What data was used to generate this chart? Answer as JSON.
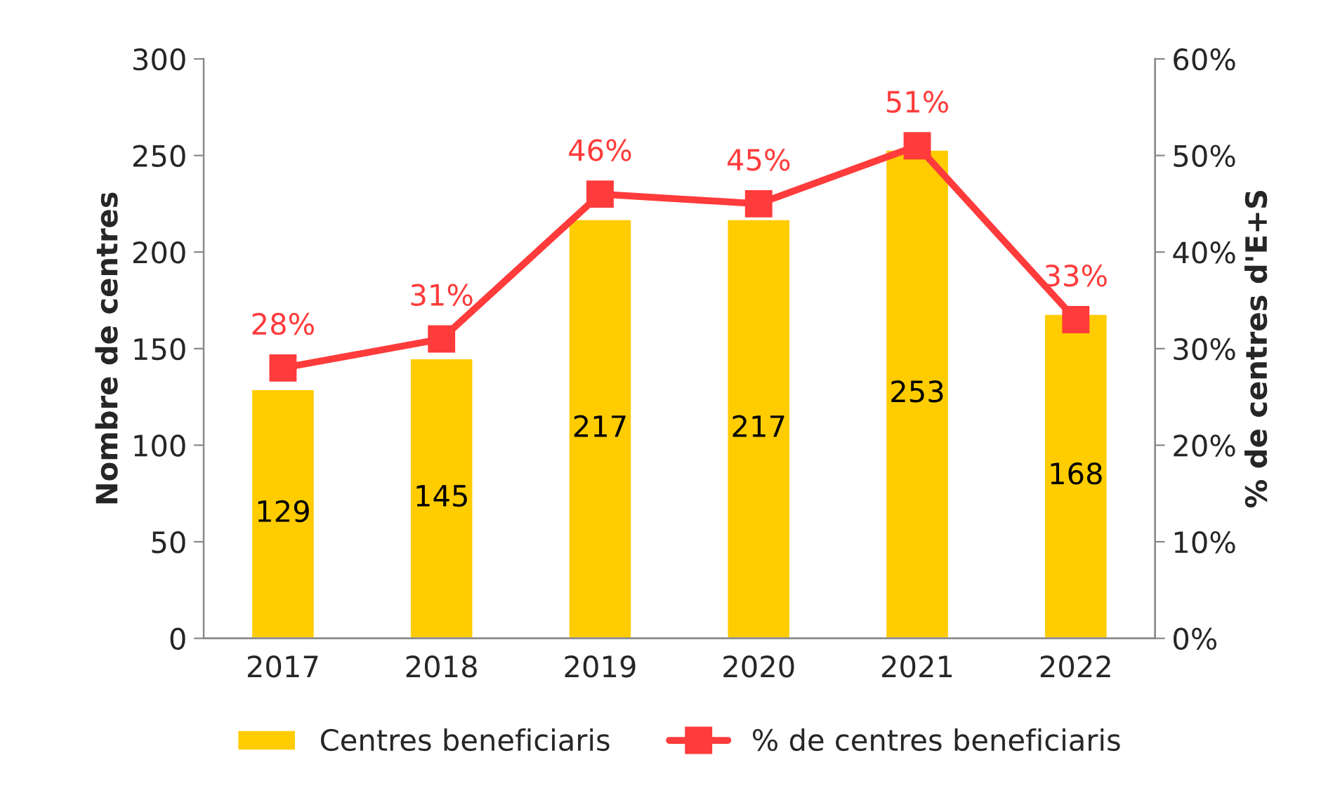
{
  "chart_data": {
    "type": "bar",
    "categories": [
      "2017",
      "2018",
      "2019",
      "2020",
      "2021",
      "2022"
    ],
    "ylabel": "Nombre de centres",
    "y2label": "% de centres d'E+S",
    "ylim": [
      0,
      300
    ],
    "yticks": [
      0,
      50,
      100,
      150,
      200,
      250,
      300
    ],
    "y2lim": [
      0,
      60
    ],
    "y2ticks": [
      {
        "value": 0,
        "label": "0%"
      },
      {
        "value": 10,
        "label": "10%"
      },
      {
        "value": 20,
        "label": "20%"
      },
      {
        "value": 30,
        "label": "30%"
      },
      {
        "value": 40,
        "label": "40%"
      },
      {
        "value": 50,
        "label": "50%"
      },
      {
        "value": 60,
        "label": "60%"
      }
    ],
    "series": [
      {
        "name": "Centres beneficiaris",
        "color": "#ffcc00",
        "values": [
          129,
          145,
          217,
          217,
          253,
          168
        ],
        "value_labels": [
          "129",
          "145",
          "217",
          "217",
          "253",
          "168"
        ]
      },
      {
        "name": "% de centres beneficiaris",
        "type": "line",
        "axis": "y2",
        "color": "#ff3b3b",
        "marker": "square",
        "values": [
          28,
          31,
          46,
          45,
          51,
          33
        ],
        "value_labels": [
          "28%",
          "31%",
          "46%",
          "45%",
          "51%",
          "33%"
        ]
      }
    ],
    "grid": false,
    "legend": "bottom"
  }
}
